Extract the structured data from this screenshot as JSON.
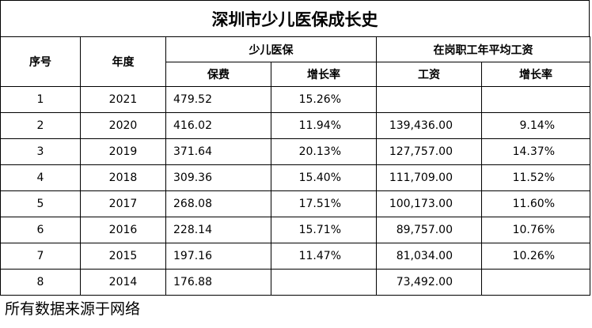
{
  "title": "深圳市少儿医保成长史",
  "headers": {
    "seq": "序号",
    "year": "年度",
    "group_child": "少儿医保",
    "group_salary": "在岗职工年平均工资",
    "premium": "保费",
    "premium_growth": "增长率",
    "salary": "工资",
    "salary_growth": "增长率"
  },
  "rows": [
    {
      "seq": "1",
      "year": "2021",
      "premium": "479.52",
      "premium_growth": "15.26%",
      "salary": "",
      "salary_growth": ""
    },
    {
      "seq": "2",
      "year": "2020",
      "premium": "416.02",
      "premium_growth": "11.94%",
      "salary": "139,436.00",
      "salary_growth": "9.14%"
    },
    {
      "seq": "3",
      "year": "2019",
      "premium": "371.64",
      "premium_growth": "20.13%",
      "salary": "127,757.00",
      "salary_growth": "14.37%"
    },
    {
      "seq": "4",
      "year": "2018",
      "premium": "309.36",
      "premium_growth": "15.40%",
      "salary": "111,709.00",
      "salary_growth": "11.52%"
    },
    {
      "seq": "5",
      "year": "2017",
      "premium": "268.08",
      "premium_growth": "17.51%",
      "salary": "100,173.00",
      "salary_growth": "11.60%"
    },
    {
      "seq": "6",
      "year": "2016",
      "premium": "228.14",
      "premium_growth": "15.71%",
      "salary": "89,757.00",
      "salary_growth": "10.76%"
    },
    {
      "seq": "7",
      "year": "2015",
      "premium": "197.16",
      "premium_growth": "11.47%",
      "salary": "81,034.00",
      "salary_growth": "10.26%"
    },
    {
      "seq": "8",
      "year": "2014",
      "premium": "176.88",
      "premium_growth": "",
      "salary": "73,492.00",
      "salary_growth": ""
    }
  ],
  "footnote": "所有数据来源于网络"
}
